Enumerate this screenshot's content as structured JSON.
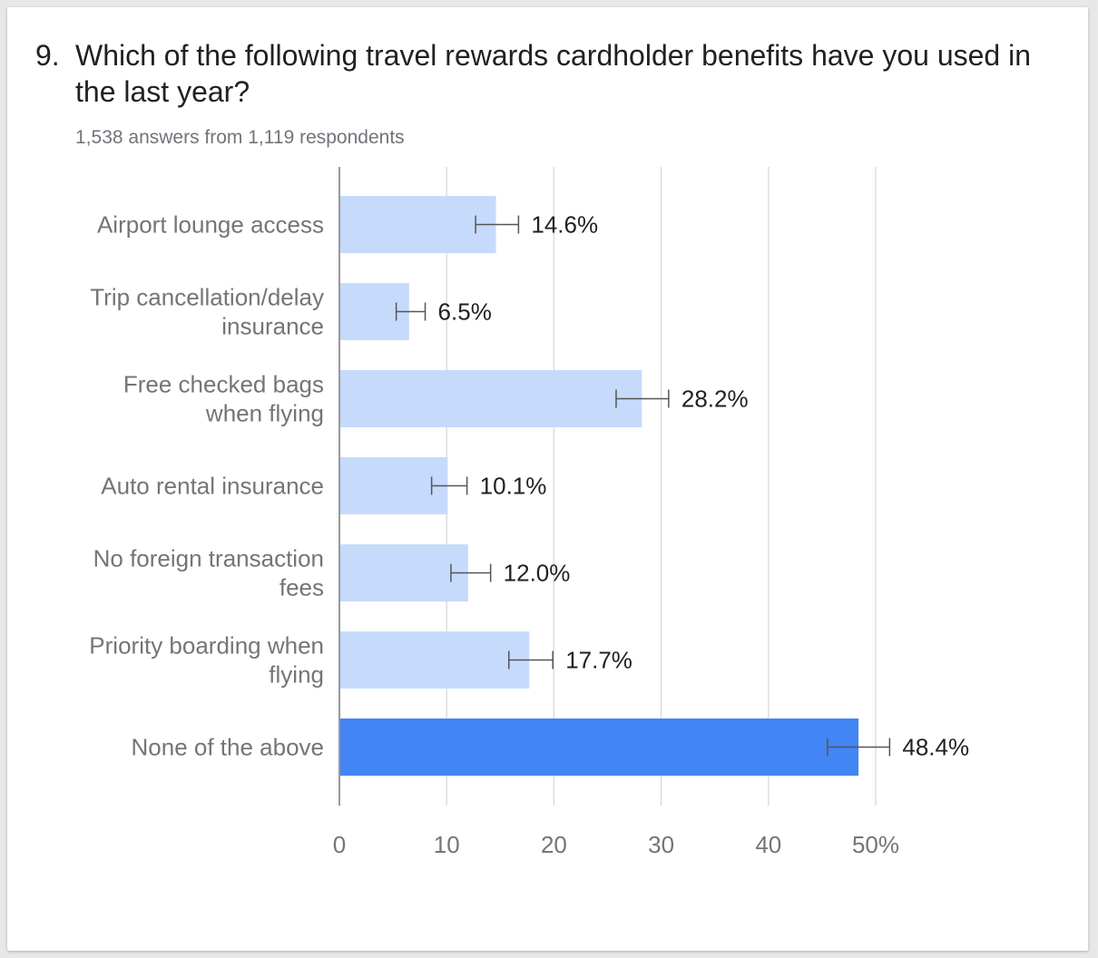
{
  "question": {
    "number": "9.",
    "title": "Which of the following travel rewards cardholder benefits have you used in the last year?",
    "subtitle": "1,538 answers from 1,119 respondents"
  },
  "colors": {
    "bar": "#c6dafc",
    "bar_highlight": "#4285f4",
    "gridline": "#dddddd",
    "axis": "#999999",
    "error_bar": "#555555"
  },
  "chart_data": {
    "type": "bar",
    "orientation": "horizontal",
    "categories": [
      [
        "Airport lounge access"
      ],
      [
        "Trip cancellation/delay",
        "insurance"
      ],
      [
        "Free checked bags",
        "when flying"
      ],
      [
        "Auto rental insurance"
      ],
      [
        "No foreign transaction",
        "fees"
      ],
      [
        "Priority boarding when",
        "flying"
      ],
      [
        "None of the above"
      ]
    ],
    "values": [
      14.6,
      6.5,
      28.2,
      10.1,
      12.0,
      17.7,
      48.4
    ],
    "value_labels": [
      "14.6%",
      "6.5%",
      "28.2%",
      "10.1%",
      "12.0%",
      "17.7%",
      "48.4%"
    ],
    "error_low": [
      12.7,
      5.3,
      25.8,
      8.6,
      10.4,
      15.8,
      45.5
    ],
    "error_high": [
      16.7,
      8.0,
      30.7,
      11.9,
      14.1,
      19.9,
      51.3
    ],
    "highlight_index": 6,
    "xlim": [
      0,
      50
    ],
    "ticks": [
      0,
      10,
      20,
      30,
      40,
      50
    ],
    "tick_labels": [
      "0",
      "10",
      "20",
      "30",
      "40",
      "50%"
    ],
    "grid": true,
    "legend": "none"
  }
}
